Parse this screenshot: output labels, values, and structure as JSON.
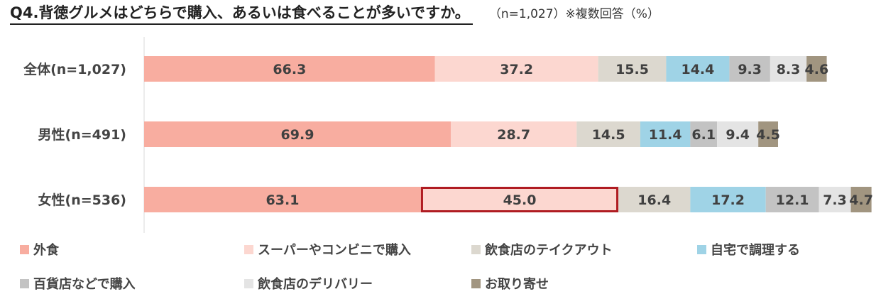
{
  "header": {
    "title": "Q4.背徳グルメはどちらで購入、あるいは食べることが多いですか。",
    "note": "（n=1,027）※複数回答（%）"
  },
  "chart_data": {
    "type": "bar",
    "orientation": "horizontal",
    "stacked": true,
    "title": "Q4.背徳グルメはどちらで購入、あるいは食べることが多いですか。",
    "categories": [
      "全体(n=1,027)",
      "男性(n=491)",
      "女性(n=536)"
    ],
    "series": [
      {
        "name": "外食",
        "color": "#f8ada0",
        "values": [
          66.3,
          69.9,
          63.1
        ]
      },
      {
        "name": "スーパーやコンビニで購入",
        "color": "#fcd7d0",
        "values": [
          37.2,
          28.7,
          45.0
        ]
      },
      {
        "name": "飲食店のテイクアウト",
        "color": "#dcd8cf",
        "values": [
          15.5,
          14.5,
          16.4
        ]
      },
      {
        "name": "自宅で調理する",
        "color": "#9fd3e6",
        "values": [
          14.4,
          11.4,
          17.2
        ]
      },
      {
        "name": "百貨店などで購入",
        "color": "#c3c3c3",
        "values": [
          9.3,
          6.1,
          12.1
        ]
      },
      {
        "name": "飲食店のデリバリー",
        "color": "#e4e4e4",
        "values": [
          8.3,
          9.4,
          7.3
        ]
      },
      {
        "name": "お取り寄せ",
        "color": "#a19580",
        "values": [
          4.6,
          4.5,
          4.7
        ]
      }
    ],
    "highlight": {
      "category_index": 2,
      "series_index": 1,
      "color": "#b01c22"
    },
    "legend_position": "bottom",
    "grid": false
  }
}
